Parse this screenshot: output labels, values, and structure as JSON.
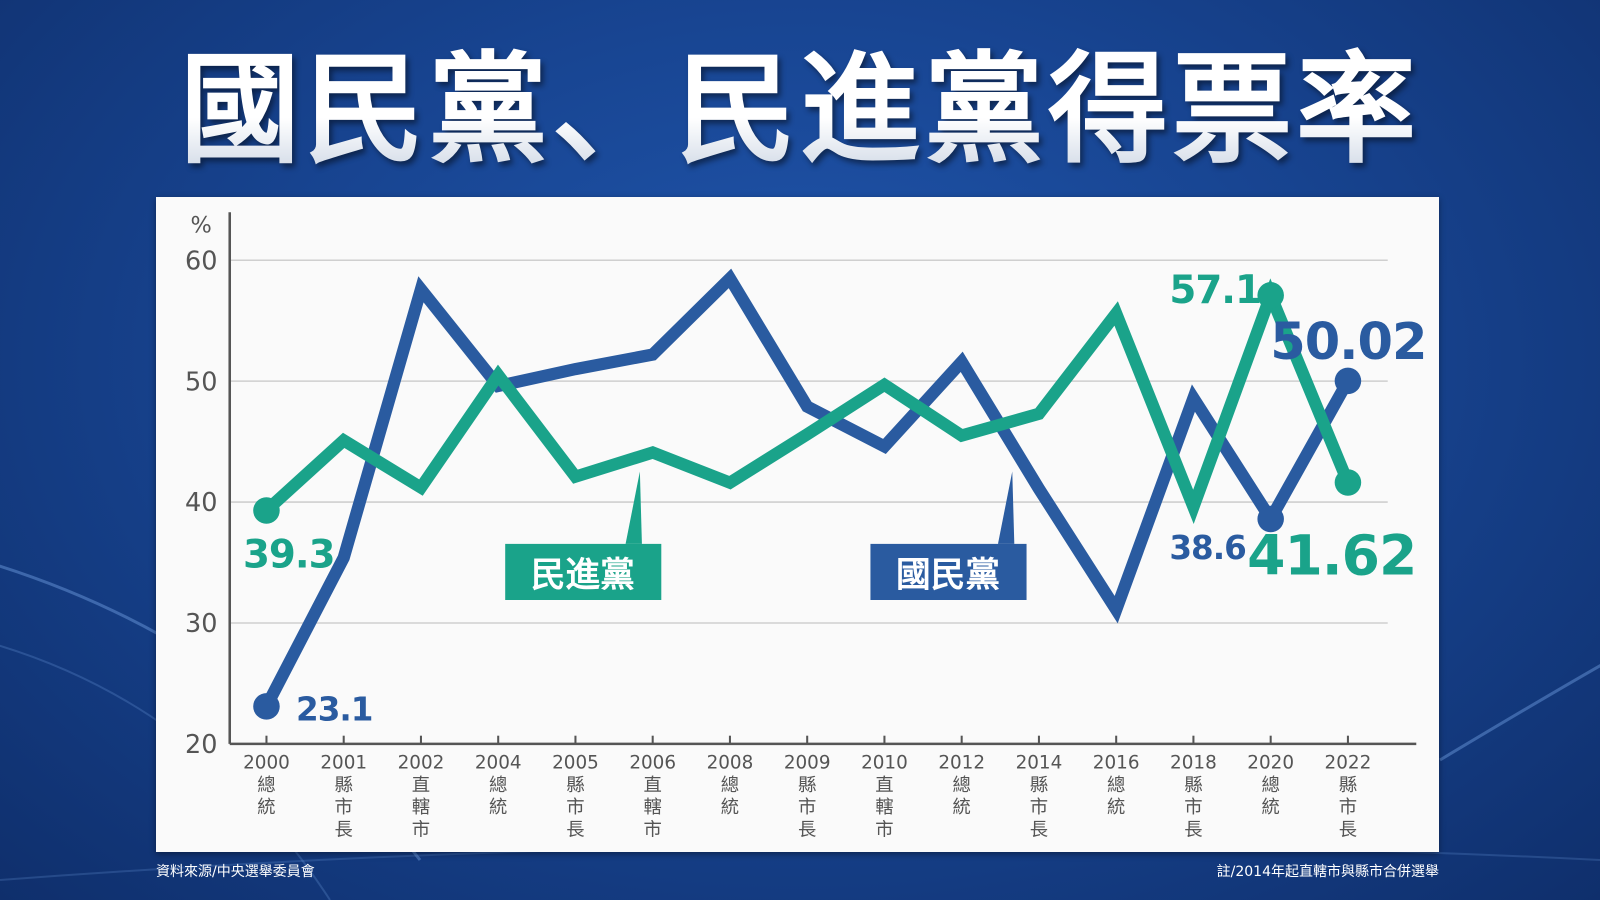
{
  "title": "國民黨、民進黨得票率",
  "source": "資料來源/中央選舉委員會",
  "note": "註/2014年起直轄市與縣市合併選舉",
  "chart_data": {
    "type": "line",
    "title": "國民黨、民進黨得票率",
    "ylabel": "%",
    "ylim": [
      20,
      60
    ],
    "yticks": [
      20,
      30,
      40,
      50,
      60
    ],
    "grid": true,
    "categories": [
      {
        "year": "2000",
        "type": "總統"
      },
      {
        "year": "2001",
        "type": "縣市長"
      },
      {
        "year": "2002",
        "type": "直轄市"
      },
      {
        "year": "2004",
        "type": "總統"
      },
      {
        "year": "2005",
        "type": "縣市長"
      },
      {
        "year": "2006",
        "type": "直轄市"
      },
      {
        "year": "2008",
        "type": "總統"
      },
      {
        "year": "2009",
        "type": "縣市長"
      },
      {
        "year": "2010",
        "type": "直轄市"
      },
      {
        "year": "2012",
        "type": "總統"
      },
      {
        "year": "2014",
        "type": "縣市長"
      },
      {
        "year": "2016",
        "type": "總統"
      },
      {
        "year": "2018",
        "type": "縣市長"
      },
      {
        "year": "2020",
        "type": "總統"
      },
      {
        "year": "2022",
        "type": "縣市長"
      }
    ],
    "series": [
      {
        "name": "國民黨",
        "color": "#2a5ba0",
        "values": [
          23.1,
          35.4,
          57.6,
          49.6,
          51.0,
          52.2,
          58.5,
          47.9,
          44.6,
          51.6,
          41.1,
          31.1,
          48.6,
          38.6,
          50.02
        ],
        "labels": {
          "0": "23.1",
          "13": "38.6",
          "14": "50.02"
        }
      },
      {
        "name": "民進黨",
        "color": "#1aa38a",
        "values": [
          39.3,
          45.1,
          41.2,
          50.5,
          42.1,
          44.1,
          41.6,
          45.6,
          49.7,
          45.5,
          47.3,
          55.6,
          39.6,
          57.1,
          41.62
        ],
        "labels": {
          "0": "39.3",
          "13": "57.1",
          "14": "41.62"
        }
      }
    ]
  }
}
